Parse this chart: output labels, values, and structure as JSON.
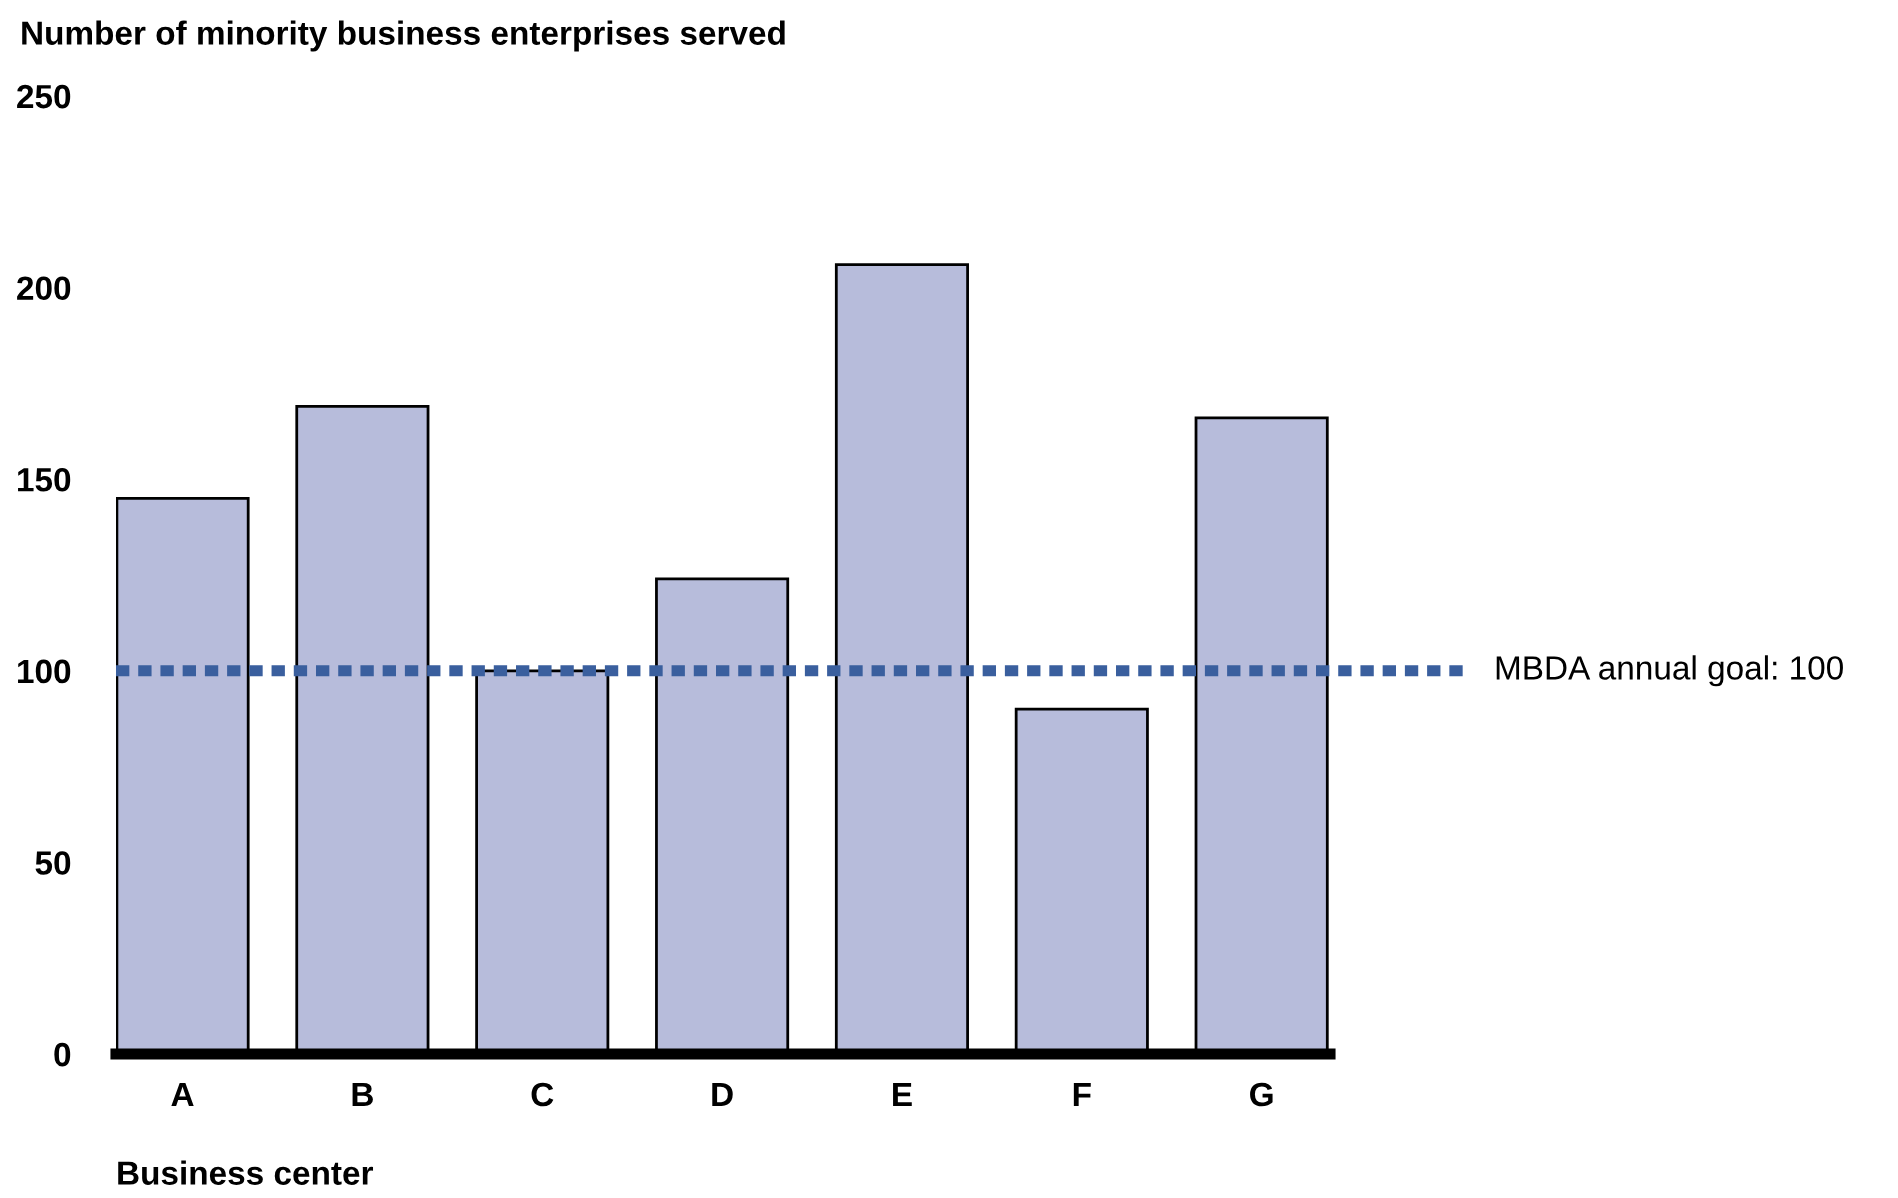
{
  "chart_data": {
    "type": "bar",
    "ylabel": "Number of minority business enterprises served",
    "xlabel": "Business center",
    "categories": [
      "A",
      "B",
      "C",
      "D",
      "E",
      "F",
      "G"
    ],
    "values": [
      145,
      169,
      100,
      124,
      206,
      90,
      166
    ],
    "color": "#b7bcdb",
    "ylim": [
      0,
      250
    ],
    "yticks": [
      0,
      50,
      100,
      150,
      200,
      250
    ],
    "grid": false,
    "ref_lines": [
      {
        "axis": "y",
        "value": 100,
        "label": "MBDA annual goal: 100",
        "color": "#3a5f9e",
        "line_style": "dotted"
      }
    ]
  }
}
